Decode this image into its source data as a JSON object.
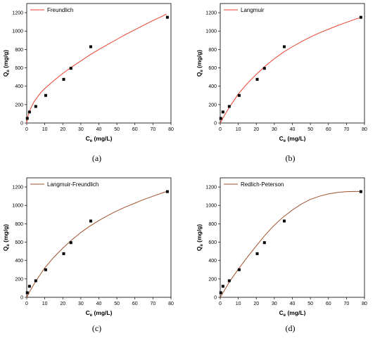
{
  "chart_data": [
    {
      "type": "scatter",
      "caption": "(a)",
      "legend": "Freundlich",
      "xlabel_main": "C",
      "xlabel_sub": "e",
      "xlabel_unit": " (mg/L)",
      "ylabel_main": "Q",
      "ylabel_sub": "e",
      "ylabel_unit": " (mg/g)",
      "xlim": [
        0,
        80
      ],
      "ylim": [
        0,
        1300
      ],
      "xticks": [
        0,
        10,
        20,
        30,
        40,
        50,
        60,
        70,
        80
      ],
      "yticks": [
        0,
        200,
        400,
        600,
        800,
        1000,
        1200
      ],
      "points": {
        "x": [
          0.3,
          1.5,
          5,
          10.5,
          20.5,
          24.5,
          35.5,
          78
        ],
        "y": [
          50,
          120,
          180,
          300,
          475,
          595,
          830,
          1150
        ]
      },
      "fit": {
        "x": [
          0,
          0.5,
          2,
          4,
          6,
          8,
          10,
          15,
          20,
          25,
          30,
          35,
          40,
          45,
          50,
          55,
          60,
          65,
          70,
          75,
          77.5
        ],
        "y": [
          0,
          65,
          150,
          230,
          285,
          335,
          375,
          460,
          540,
          610,
          675,
          740,
          800,
          855,
          910,
          965,
          1015,
          1065,
          1115,
          1160,
          1185
        ]
      },
      "marker_color": "#000000",
      "fit_color": "#e8412f"
    },
    {
      "type": "scatter",
      "caption": "(b)",
      "legend": "Langmuir",
      "xlabel_main": "C",
      "xlabel_sub": "e",
      "xlabel_unit": " (mg/L)",
      "ylabel_main": "Q",
      "ylabel_sub": "e",
      "ylabel_unit": " (mg/g)",
      "xlim": [
        0,
        80
      ],
      "ylim": [
        0,
        1300
      ],
      "xticks": [
        0,
        10,
        20,
        30,
        40,
        50,
        60,
        70,
        80
      ],
      "yticks": [
        0,
        200,
        400,
        600,
        800,
        1000,
        1200
      ],
      "points": {
        "x": [
          0.3,
          1.5,
          5,
          10.5,
          20.5,
          24.5,
          35.5,
          78
        ],
        "y": [
          50,
          120,
          180,
          300,
          475,
          595,
          830,
          1150
        ]
      },
      "fit": {
        "x": [
          0,
          2,
          5,
          10,
          15,
          20,
          25,
          30,
          35,
          40,
          45,
          50,
          55,
          60,
          65,
          70,
          75,
          77.5
        ],
        "y": [
          0,
          70,
          170,
          315,
          430,
          530,
          620,
          700,
          770,
          830,
          885,
          935,
          980,
          1020,
          1060,
          1095,
          1130,
          1145
        ]
      },
      "marker_color": "#000000",
      "fit_color": "#e8412f"
    },
    {
      "type": "scatter",
      "caption": "(c)",
      "legend": "Langmuir-Freundlich",
      "xlabel_main": "C",
      "xlabel_sub": "e",
      "xlabel_unit": " (mg/L)",
      "ylabel_main": "Q",
      "ylabel_sub": "e",
      "ylabel_unit": " (mg/g)",
      "xlim": [
        0,
        80
      ],
      "ylim": [
        0,
        1300
      ],
      "xticks": [
        0,
        10,
        20,
        30,
        40,
        50,
        60,
        70,
        80
      ],
      "yticks": [
        0,
        200,
        400,
        600,
        800,
        1000,
        1200
      ],
      "points": {
        "x": [
          0.3,
          1.5,
          5,
          10.5,
          20.5,
          24.5,
          35.5,
          78
        ],
        "y": [
          50,
          120,
          180,
          300,
          475,
          595,
          830,
          1150
        ]
      },
      "fit": {
        "x": [
          0,
          2,
          5,
          10,
          15,
          20,
          25,
          30,
          35,
          40,
          45,
          50,
          55,
          60,
          65,
          70,
          75,
          77.5
        ],
        "y": [
          0,
          75,
          175,
          320,
          435,
          535,
          625,
          705,
          775,
          835,
          890,
          940,
          985,
          1025,
          1065,
          1100,
          1135,
          1150
        ]
      },
      "marker_color": "#000000",
      "fit_color": "#a0522d"
    },
    {
      "type": "scatter",
      "caption": "(d)",
      "legend": "Redlich-Peterson",
      "xlabel_main": "C",
      "xlabel_sub": "e",
      "xlabel_unit": " (mg/L)",
      "ylabel_main": "Q",
      "ylabel_sub": "e",
      "ylabel_unit": " (mg/g)",
      "xlim": [
        0,
        80
      ],
      "ylim": [
        0,
        1300
      ],
      "xticks": [
        0,
        10,
        20,
        30,
        40,
        50,
        60,
        70,
        80
      ],
      "yticks": [
        0,
        200,
        400,
        600,
        800,
        1000,
        1200
      ],
      "points": {
        "x": [
          0.3,
          1.5,
          5,
          10.5,
          20.5,
          24.5,
          35.5,
          78
        ],
        "y": [
          50,
          120,
          180,
          300,
          475,
          595,
          830,
          1150
        ]
      },
      "fit": {
        "x": [
          0,
          2,
          5,
          10,
          15,
          20,
          25,
          30,
          35,
          40,
          45,
          50,
          55,
          60,
          65,
          70,
          75,
          77.5
        ],
        "y": [
          0,
          65,
          165,
          305,
          435,
          560,
          680,
          785,
          875,
          950,
          1015,
          1065,
          1100,
          1125,
          1142,
          1150,
          1152,
          1152
        ]
      },
      "marker_color": "#000000",
      "fit_color": "#a0522d"
    }
  ]
}
